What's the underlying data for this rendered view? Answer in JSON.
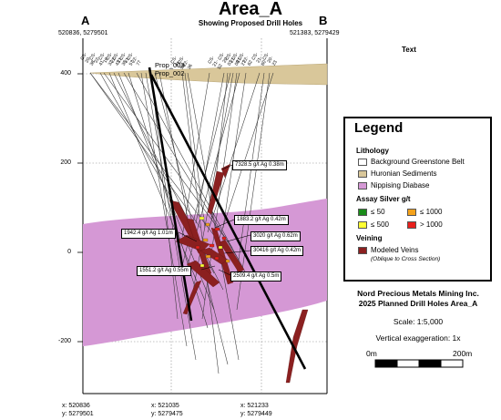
{
  "header": {
    "title": "Area_A",
    "subtitle": "Showing Proposed Drill Holes",
    "end_a": "A",
    "end_b": "B",
    "coord_a": "520836, 5279501",
    "coord_b": "521383, 5279429",
    "text_placeholder": "Text"
  },
  "elevation_ticks": [
    "400",
    "200",
    "0",
    "-200"
  ],
  "proposed_holes": [
    "Prop_003",
    "Prop_002"
  ],
  "collar_labels": [
    "CS-20-38",
    "CS-22-41",
    "CS-19-32",
    "CS-22-43",
    "CS-21-35",
    "CS-21-57",
    "CS-22-77",
    "CS-21-50",
    "CS-22-36",
    "CS-21-52",
    "CS-20-03",
    "CS-21-08",
    "CS-21-27",
    "CS-22-62",
    "CS-21-60",
    "CS-20-23"
  ],
  "annotations": [
    "7328.5 g/t Ag 0.38m",
    "1883.2 g/t Ag 0.42m",
    "1942.4 g/t Ag 1.01m",
    "3020 g/t Ag 0.62m",
    "30416 g/t Ag 0.42m",
    "1551.2 g/t Ag 0.55m",
    "2509.4 g/t Ag 0.5m"
  ],
  "legend": {
    "title": "Legend",
    "lithology_title": "Lithology",
    "lithology": [
      {
        "label": "Background Greenstone Belt",
        "color": "#ffffff"
      },
      {
        "label": "Huronian Sediments",
        "color": "#d9c79a"
      },
      {
        "label": "Nippising Diabase",
        "color": "#d598d5"
      }
    ],
    "assay_title": "Assay Silver g/t",
    "assay": [
      {
        "label": "≤ 50",
        "color": "#1a8c1a"
      },
      {
        "label": "≤ 1000",
        "color": "#f4a21b"
      },
      {
        "label": "≤ 500",
        "color": "#ffff33"
      },
      {
        "label": "> 1000",
        "color": "#e8201c"
      }
    ],
    "veining_title": "Veining",
    "veining_label": "Modeled Veins",
    "veining_note": "(Oblique to Cross Section)",
    "vein_color": "#8b2020"
  },
  "company": {
    "line1": "Nord Precious Metals Mining Inc.",
    "line2": "2025 Planned Drill Holes Area_A",
    "scale": "Scale: 1:5,000",
    "vertical_exaggeration": "Vertical exaggeration: 1x",
    "scalebar_start": "0m",
    "scalebar_end": "200m"
  },
  "footer": [
    {
      "x": "x: 520836",
      "y": "y: 5279501"
    },
    {
      "x": "x: 521035",
      "y": "y: 5279475"
    },
    {
      "x": "x: 521233",
      "y": "y: 5279449"
    }
  ]
}
